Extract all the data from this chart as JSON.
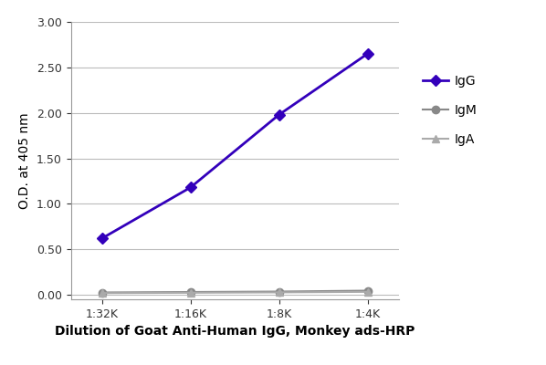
{
  "x_positions": [
    1,
    2,
    3,
    4
  ],
  "x_labels": [
    "1:32K",
    "1:16K",
    "1:8K",
    "1:4K"
  ],
  "xlabel": "Dilution of Goat Anti-Human IgG, Monkey ads-HRP",
  "ylabel": "O.D. at 405 nm",
  "ylim": [
    -0.05,
    3.0
  ],
  "yticks": [
    0.0,
    0.5,
    1.0,
    1.5,
    2.0,
    2.5,
    3.0
  ],
  "series": [
    {
      "label": "IgG",
      "values": [
        0.62,
        1.18,
        1.98,
        2.65
      ],
      "color": "#3300bb",
      "marker": "D",
      "markersize": 6,
      "linewidth": 2.0
    },
    {
      "label": "IgM",
      "values": [
        0.025,
        0.03,
        0.035,
        0.045
      ],
      "color": "#888888",
      "marker": "o",
      "markersize": 6,
      "linewidth": 1.5
    },
    {
      "label": "IgA",
      "values": [
        0.018,
        0.022,
        0.026,
        0.032
      ],
      "color": "#aaaaaa",
      "marker": "^",
      "markersize": 6,
      "linewidth": 1.5
    }
  ],
  "background_color": "#ffffff",
  "grid_color": "#bbbbbb",
  "legend_fontsize": 10,
  "axis_label_fontsize": 10,
  "tick_fontsize": 9
}
